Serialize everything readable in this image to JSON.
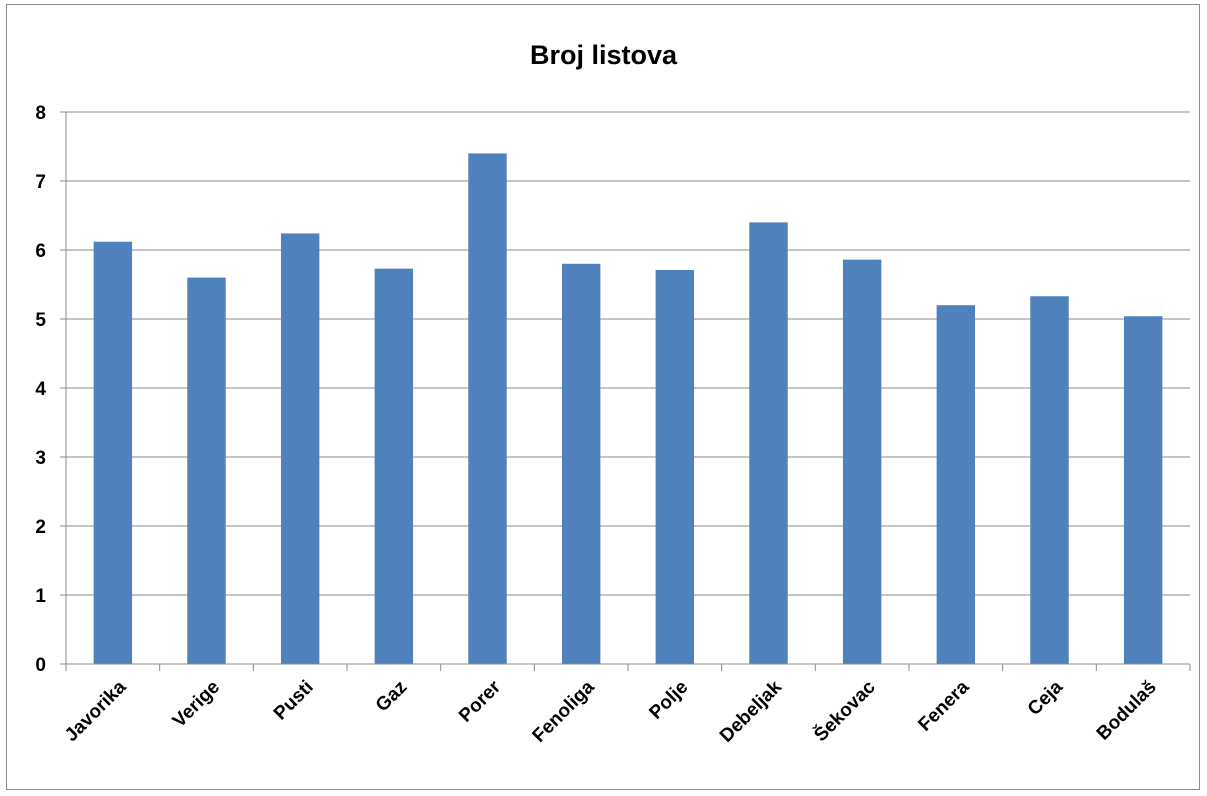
{
  "chart_data": {
    "type": "bar",
    "title": "Broj listova",
    "xlabel": "",
    "ylabel": "",
    "categories": [
      "Javorika",
      "Verige",
      "Pusti",
      "Gaz",
      "Porer",
      "Fenoliga",
      "Polje",
      "Debeljak",
      "Šekovac",
      "Fenera",
      "Ceja",
      "Bodulaš"
    ],
    "values": [
      6.12,
      5.6,
      6.24,
      5.73,
      7.4,
      5.8,
      5.71,
      6.4,
      5.86,
      5.2,
      5.33,
      5.04
    ],
    "ylim": [
      0,
      8
    ],
    "yticks": [
      "0",
      "1",
      "2",
      "3",
      "4",
      "5",
      "6",
      "7",
      "8"
    ],
    "grid": true,
    "legend": "none",
    "colors": {
      "bar": "#4f81bd",
      "grid": "#8c8c8c",
      "axis": "#8c8c8c"
    }
  }
}
